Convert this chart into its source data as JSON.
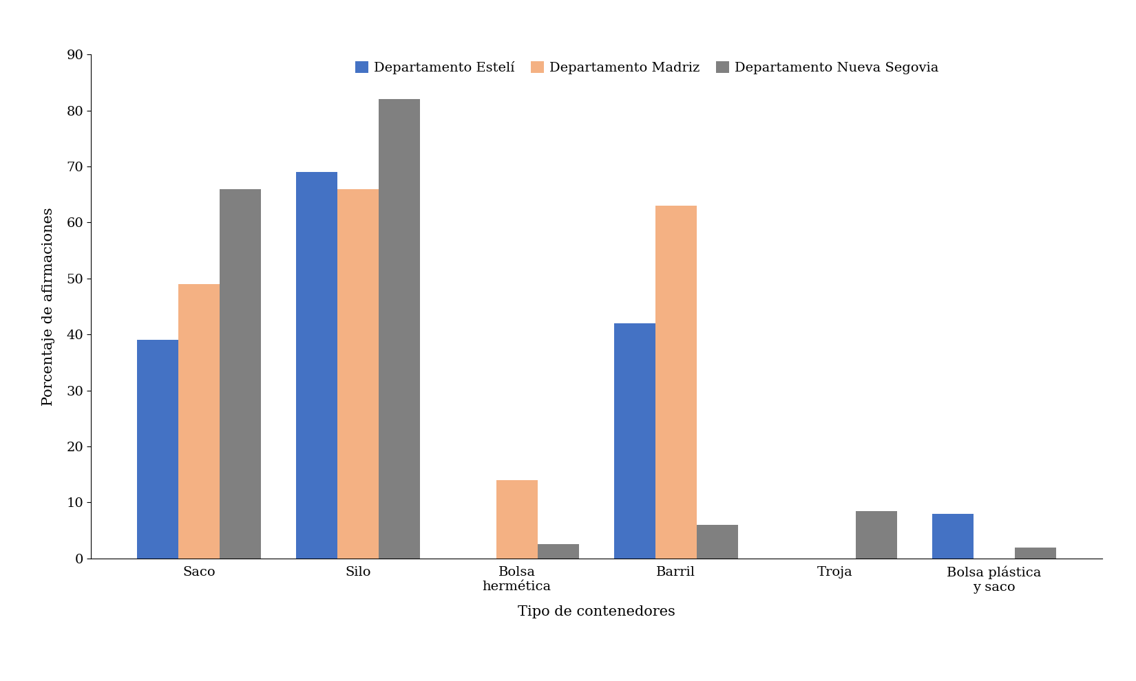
{
  "categories": [
    "Saco",
    "Silo",
    "Bolsa\nhermética",
    "Barril",
    "Troja",
    "Bolsa plástica\ny saco"
  ],
  "series": [
    {
      "name": "Departamento Estelí",
      "color": "#4472C4",
      "values": [
        39,
        69,
        0,
        42,
        0,
        8
      ]
    },
    {
      "name": "Departamento Madriz",
      "color": "#F4B183",
      "values": [
        49,
        66,
        14,
        63,
        0,
        0
      ]
    },
    {
      "name": "Departamento Nueva Segovia",
      "color": "#808080",
      "values": [
        66,
        82,
        2.5,
        6,
        8.5,
        2
      ]
    }
  ],
  "xlabel": "Tipo de contenedores",
  "ylabel": "Porcentaje de afirmaciones",
  "ylim": [
    0,
    90
  ],
  "yticks": [
    0,
    10,
    20,
    30,
    40,
    50,
    60,
    70,
    80,
    90
  ],
  "bar_width": 0.26,
  "font_family": "serif",
  "axis_label_fontsize": 15,
  "tick_fontsize": 14,
  "legend_fontsize": 14,
  "background_color": "#ffffff"
}
